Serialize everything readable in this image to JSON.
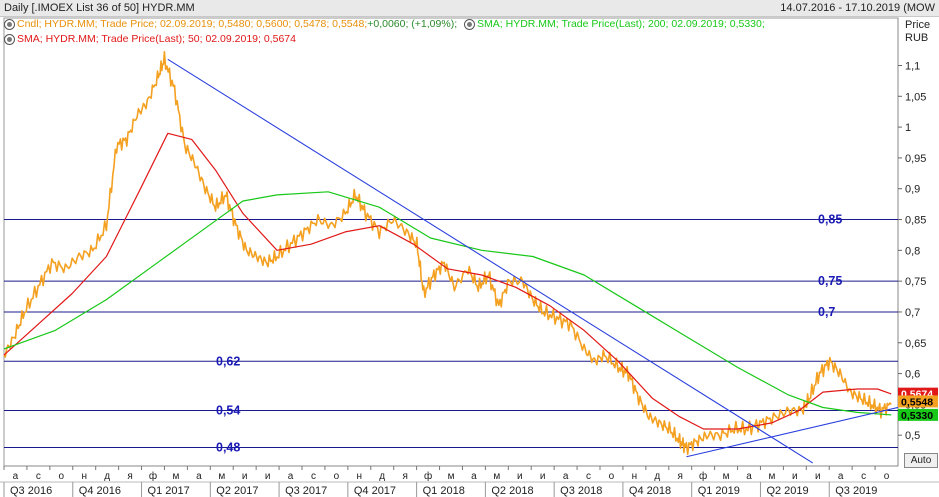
{
  "header": {
    "title": "Daily [.IMOEX List 36 of 50] HYDR.MM",
    "date_range": "14.07.2016 - 17.10.2019 (MOW"
  },
  "legend": {
    "candle": {
      "parts": [
        {
          "text": "Cndl; HYDR.MM; Trade Price; 02.09.2019; 0,5480; 0,5600; 0,5478; 0,5548;",
          "color": "#e8900a"
        },
        {
          "text": " +0,0060; (+1,09%);",
          "color": "#2a8a2a"
        }
      ]
    },
    "sma200": "SMA; HYDR.MM; Trade Price(Last);  200;  02.09.2019; 0,5330;",
    "sma50": "SMA; HYDR.MM; Trade Price(Last);  50;  02.09.2019; 0,5674"
  },
  "axis_title": {
    "line1": "Price",
    "line2": "RUB"
  },
  "auto_button": "Auto",
  "colors": {
    "price": "#f4a020",
    "sma50": "#e11818",
    "sma200": "#18c818",
    "trendline": "#2a3fdd",
    "hline": "#1a1a8c",
    "level_text": "#1a1ab4"
  },
  "chart_data": {
    "type": "line",
    "ylim": [
      0.45,
      1.13
    ],
    "yticks": [
      "1,1",
      "1,05",
      "1",
      "0,95",
      "0,9",
      "0,85",
      "0,8",
      "0,75",
      "0,7",
      "0,65",
      "0,6",
      "0,55",
      "0,5"
    ],
    "ytick_values": [
      1.1,
      1.05,
      1.0,
      0.95,
      0.9,
      0.85,
      0.8,
      0.75,
      0.7,
      0.65,
      0.6,
      0.55,
      0.5
    ],
    "month_labels": [
      "а",
      "с",
      "о",
      "н",
      "д",
      "я",
      "ф",
      "м",
      "а",
      "м",
      "и",
      "и",
      "а",
      "с",
      "о",
      "н",
      "д",
      "я",
      "ф",
      "м",
      "а",
      "м",
      "и",
      "и",
      "а",
      "с",
      "о",
      "н",
      "д",
      "я",
      "ф",
      "м",
      "а",
      "м",
      "и",
      "и",
      "а",
      "с",
      "о"
    ],
    "quarter_labels": [
      "Q3 2016",
      "Q4 2016",
      "Q1 2017",
      "Q2 2017",
      "Q3 2017",
      "Q4 2017",
      "Q1 2018",
      "Q2 2018",
      "Q3 2018",
      "Q4 2018",
      "Q1 2019",
      "Q2 2019",
      "Q3 2019"
    ],
    "series": [
      {
        "name": "HYDR.MM",
        "kind": "price",
        "values": [
          [
            0,
            0.63
          ],
          [
            0.3,
            0.66
          ],
          [
            0.6,
            0.7
          ],
          [
            1.0,
            0.74
          ],
          [
            1.4,
            0.78
          ],
          [
            1.8,
            0.77
          ],
          [
            2.2,
            0.79
          ],
          [
            2.6,
            0.8
          ],
          [
            3.0,
            0.84
          ],
          [
            3.3,
            0.97
          ],
          [
            3.6,
            0.98
          ],
          [
            3.9,
            1.02
          ],
          [
            4.2,
            1.04
          ],
          [
            4.5,
            1.08
          ],
          [
            4.7,
            1.11
          ],
          [
            5.0,
            1.06
          ],
          [
            5.3,
            0.97
          ],
          [
            5.6,
            0.94
          ],
          [
            5.9,
            0.9
          ],
          [
            6.2,
            0.87
          ],
          [
            6.5,
            0.89
          ],
          [
            6.8,
            0.84
          ],
          [
            7.1,
            0.8
          ],
          [
            7.4,
            0.79
          ],
          [
            7.7,
            0.78
          ],
          [
            8.0,
            0.79
          ],
          [
            8.4,
            0.81
          ],
          [
            8.8,
            0.83
          ],
          [
            9.2,
            0.85
          ],
          [
            9.6,
            0.84
          ],
          [
            10.0,
            0.86
          ],
          [
            10.3,
            0.89
          ],
          [
            10.6,
            0.86
          ],
          [
            11.0,
            0.83
          ],
          [
            11.4,
            0.85
          ],
          [
            11.8,
            0.83
          ],
          [
            12.1,
            0.81
          ],
          [
            12.3,
            0.73
          ],
          [
            12.6,
            0.76
          ],
          [
            12.9,
            0.78
          ],
          [
            13.2,
            0.74
          ],
          [
            13.6,
            0.77
          ],
          [
            13.9,
            0.74
          ],
          [
            14.2,
            0.76
          ],
          [
            14.5,
            0.71
          ],
          [
            14.8,
            0.75
          ],
          [
            15.2,
            0.75
          ],
          [
            15.5,
            0.72
          ],
          [
            15.8,
            0.7
          ],
          [
            16.2,
            0.69
          ],
          [
            16.6,
            0.68
          ],
          [
            17.0,
            0.64
          ],
          [
            17.3,
            0.62
          ],
          [
            17.6,
            0.63
          ],
          [
            18.0,
            0.61
          ],
          [
            18.3,
            0.6
          ],
          [
            18.6,
            0.56
          ],
          [
            18.9,
            0.53
          ],
          [
            19.2,
            0.52
          ],
          [
            19.5,
            0.51
          ],
          [
            19.8,
            0.49
          ],
          [
            20.0,
            0.48
          ],
          [
            20.3,
            0.49
          ],
          [
            20.6,
            0.5
          ],
          [
            21.0,
            0.5
          ],
          [
            21.4,
            0.51
          ],
          [
            21.8,
            0.51
          ],
          [
            22.2,
            0.52
          ],
          [
            22.6,
            0.53
          ],
          [
            23.0,
            0.54
          ],
          [
            23.4,
            0.54
          ],
          [
            23.6,
            0.56
          ],
          [
            23.9,
            0.6
          ],
          [
            24.2,
            0.62
          ],
          [
            24.5,
            0.6
          ],
          [
            24.8,
            0.57
          ],
          [
            25.1,
            0.56
          ],
          [
            25.4,
            0.55
          ],
          [
            25.7,
            0.54
          ],
          [
            26.0,
            0.55
          ]
        ]
      },
      {
        "name": "SMA 50",
        "kind": "sma50",
        "values": [
          [
            0,
            0.63
          ],
          [
            1.0,
            0.68
          ],
          [
            2.0,
            0.73
          ],
          [
            3.0,
            0.79
          ],
          [
            4.0,
            0.9
          ],
          [
            4.8,
            0.99
          ],
          [
            5.5,
            0.98
          ],
          [
            6.2,
            0.93
          ],
          [
            7.0,
            0.86
          ],
          [
            8.0,
            0.8
          ],
          [
            9.0,
            0.81
          ],
          [
            10.0,
            0.83
          ],
          [
            11.0,
            0.84
          ],
          [
            12.0,
            0.81
          ],
          [
            13.0,
            0.77
          ],
          [
            14.0,
            0.76
          ],
          [
            15.0,
            0.74
          ],
          [
            16.0,
            0.71
          ],
          [
            17.0,
            0.67
          ],
          [
            18.0,
            0.62
          ],
          [
            19.0,
            0.56
          ],
          [
            19.8,
            0.53
          ],
          [
            20.5,
            0.51
          ],
          [
            21.5,
            0.51
          ],
          [
            22.5,
            0.52
          ],
          [
            23.3,
            0.54
          ],
          [
            24.0,
            0.57
          ],
          [
            25.0,
            0.575
          ],
          [
            25.6,
            0.575
          ],
          [
            26.0,
            0.567
          ]
        ]
      },
      {
        "name": "SMA 200",
        "kind": "sma200",
        "values": [
          [
            0,
            0.64
          ],
          [
            1.5,
            0.67
          ],
          [
            3.0,
            0.72
          ],
          [
            4.5,
            0.78
          ],
          [
            6.0,
            0.84
          ],
          [
            7.0,
            0.88
          ],
          [
            8.0,
            0.89
          ],
          [
            9.5,
            0.895
          ],
          [
            11.0,
            0.87
          ],
          [
            12.5,
            0.82
          ],
          [
            14.0,
            0.8
          ],
          [
            15.5,
            0.79
          ],
          [
            17.0,
            0.76
          ],
          [
            18.5,
            0.71
          ],
          [
            20.0,
            0.66
          ],
          [
            21.5,
            0.61
          ],
          [
            23.0,
            0.565
          ],
          [
            24.0,
            0.545
          ],
          [
            25.0,
            0.537
          ],
          [
            26.0,
            0.533
          ]
        ]
      }
    ],
    "trendlines": [
      {
        "from": [
          4.8,
          1.11
        ],
        "to": [
          23.7,
          0.455
        ]
      },
      {
        "from": [
          20.0,
          0.465
        ],
        "to": [
          26.2,
          0.545
        ]
      }
    ],
    "horizontal_levels": [
      {
        "value": 0.85,
        "label": "0,85",
        "label_pos": "right"
      },
      {
        "value": 0.75,
        "label": "0,75",
        "label_pos": "right"
      },
      {
        "value": 0.7,
        "label": "0,7",
        "label_pos": "right"
      },
      {
        "value": 0.62,
        "label": "0,62",
        "label_pos": "left"
      },
      {
        "value": 0.54,
        "label": "0,54",
        "label_pos": "left"
      },
      {
        "value": 0.48,
        "label": "0,48",
        "label_pos": "left"
      }
    ],
    "price_tags": [
      {
        "value": 0.5674,
        "label": "0,5674",
        "bg": "#e11818",
        "fg": "#ffffff"
      },
      {
        "value": 0.5548,
        "label": "0,5548",
        "bg": "#f4a020",
        "fg": "#000000"
      },
      {
        "value": 0.533,
        "label": "0,5330",
        "bg": "#18c818",
        "fg": "#000000"
      }
    ]
  }
}
